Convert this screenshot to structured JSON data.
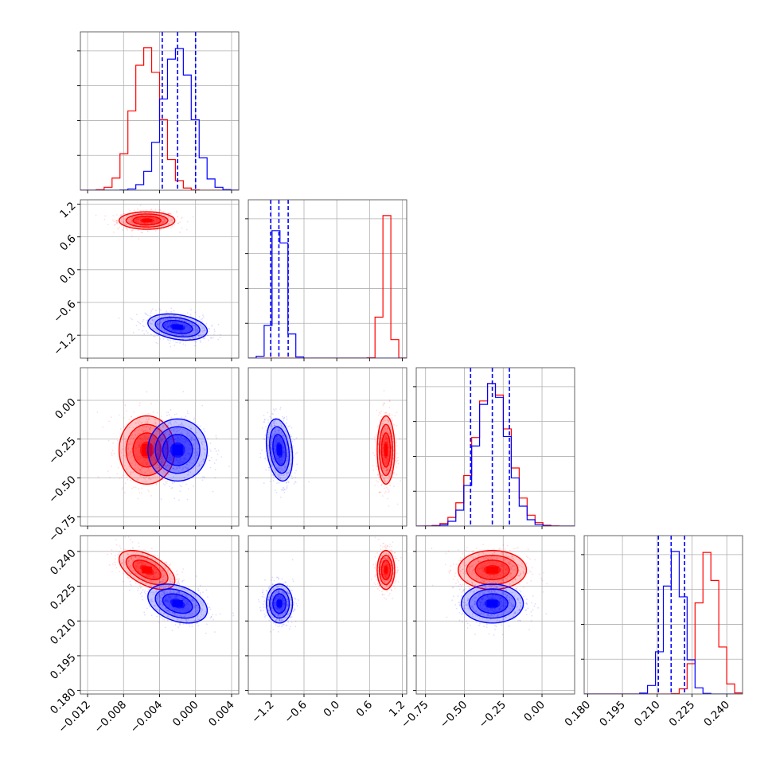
{
  "chart_data": {
    "type": "corner",
    "title": "",
    "grid": true,
    "legend": "none",
    "parameters": [
      {
        "label": "",
        "range": [
          -0.0128,
          0.0048
        ],
        "ticks": [
          -0.012,
          -0.008,
          -0.004,
          0.0,
          0.004
        ],
        "tick_labels": [
          "−0.012",
          "−0.008",
          "−0.004",
          "0.000",
          "0.004"
        ]
      },
      {
        "label": "",
        "range": [
          -1.62,
          1.28
        ],
        "ticks": [
          -1.2,
          -0.6,
          0.0,
          0.6,
          1.2
        ],
        "tick_labels": [
          "−1.2",
          "−0.6",
          "0.0",
          "0.6",
          "1.2"
        ]
      },
      {
        "label": "",
        "range": [
          -0.81,
          0.21
        ],
        "ticks": [
          -0.75,
          -0.5,
          -0.25,
          0.0
        ],
        "tick_labels": [
          "−0.75",
          "−0.50",
          "−0.25",
          "0.00"
        ]
      },
      {
        "label": "",
        "range": [
          0.1785,
          0.2468
        ],
        "ticks": [
          0.18,
          0.195,
          0.21,
          0.225,
          0.24
        ],
        "tick_labels": [
          "0.180",
          "0.195",
          "0.210",
          "0.225",
          "0.240"
        ]
      }
    ],
    "colors": {
      "red": "#ff0000",
      "blue": "#0000ff"
    },
    "series": [
      {
        "color": "#ff0000",
        "mean": [
          -0.0054,
          0.9,
          -0.32,
          0.232
        ],
        "sd": [
          0.00155,
          0.08,
          0.11,
          0.0042
        ],
        "corr": {
          "0-3": -0.55
        }
      },
      {
        "color": "#0000ff",
        "mean": [
          -0.002,
          -1.05,
          -0.32,
          0.2175
        ],
        "sd": [
          0.00165,
          0.12,
          0.1,
          0.0042
        ],
        "corr": {
          "0-1": -0.3,
          "1-2": -0.25,
          "0-3": -0.35
        }
      }
    ],
    "quantile_lines": {
      "color": "#0000ff",
      "values": [
        [
          -0.0037,
          -0.002,
          0.0
        ],
        [
          -1.21,
          -1.06,
          -0.89
        ],
        [
          -0.46,
          -0.32,
          -0.21
        ],
        [
          0.2105,
          0.216,
          0.2218
        ]
      ]
    }
  }
}
